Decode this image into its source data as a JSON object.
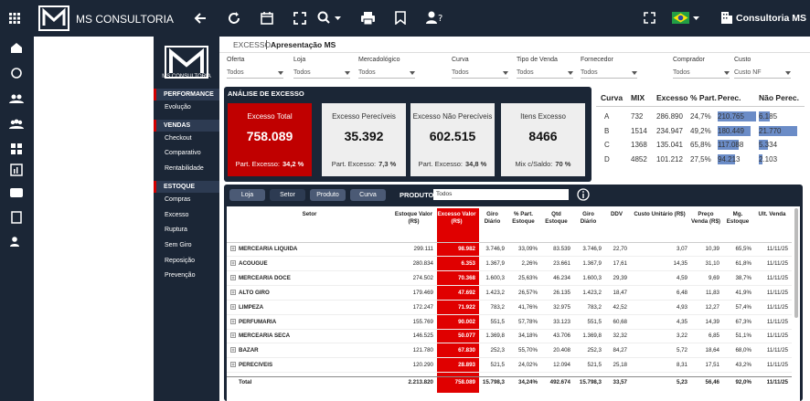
{
  "header": {
    "brand": "MS CONSULTORIA",
    "user": "Consultoria MS"
  },
  "sidebar": {
    "logo_text": "MS CONSULTORIA",
    "sections": [
      {
        "title": "PERFORMANCE",
        "items": [
          "Evolução"
        ]
      },
      {
        "title": "VENDAS",
        "items": [
          "Checkout",
          "Comparativo",
          "Rentabilidade"
        ]
      },
      {
        "title": "ESTOQUE",
        "items": [
          "Compras",
          "Excesso",
          "Ruptura",
          "Sem Giro",
          "Reposição",
          "Prevenção"
        ]
      }
    ]
  },
  "breadcrumb": {
    "section": "EXCESSO",
    "page": "Apresentação MS"
  },
  "filters": [
    {
      "label": "Oferta",
      "value": "Todos"
    },
    {
      "label": "Loja",
      "value": "Todos"
    },
    {
      "label": "Mercadológico",
      "value": "Todos"
    },
    {
      "label": "Curva",
      "value": "Todos"
    },
    {
      "label": "Tipo de Venda",
      "value": "Todos"
    },
    {
      "label": "Fornecedor",
      "value": "Todos"
    },
    {
      "label": "Comprador",
      "value": "Todos"
    },
    {
      "label": "Custo",
      "value": "Custo NF"
    }
  ],
  "kpi": {
    "title": "ANÁLISE DE EXCESSO",
    "cards": [
      {
        "label": "Excesso Total",
        "value": "758.089",
        "foot_label": "Part. Excesso:",
        "foot_value": "34,2 %"
      },
      {
        "label": "Excesso Perecíveis",
        "value": "35.392",
        "foot_label": "Part. Excesso:",
        "foot_value": "7,3 %"
      },
      {
        "label": "Excesso Não Perecíveis",
        "value": "602.515",
        "foot_label": "Part. Excesso:",
        "foot_value": "34,8 %"
      },
      {
        "label": "Itens Excesso",
        "value": "8466",
        "foot_label": "Mix c/Saldo:",
        "foot_value": "70 %"
      }
    ]
  },
  "curve_table": {
    "columns": [
      "Curva",
      "MIX",
      "Excesso",
      "% Part.",
      "Perec.",
      "Não Perec."
    ],
    "rows": [
      [
        "A",
        "732",
        "286.890",
        "24,7%",
        "210.765",
        "6.185"
      ],
      [
        "B",
        "1514",
        "234.947",
        "49,2%",
        "180.449",
        "21.770"
      ],
      [
        "C",
        "1368",
        "135.041",
        "65,8%",
        "117.088",
        "5.334"
      ],
      [
        "D",
        "4852",
        "101.212",
        "27,5%",
        "94.213",
        "2.103"
      ]
    ]
  },
  "product_table": {
    "tabs": [
      "Loja",
      "Setor",
      "Produto",
      "Curva"
    ],
    "active_tab": "Setor",
    "filter_label": "PRODUTO",
    "filter_value": "Todos",
    "columns": [
      "Setor",
      "Estoque Valor (R$)",
      "Excesso Valor (R$)",
      "Giro Diário",
      "% Part. Estoque",
      "Qtd Estoque",
      "Giro Diário",
      "DDV",
      "Custo Unitário (R$)",
      "Preço Venda (R$)",
      "Mg. Estoque",
      "Ult. Venda"
    ],
    "rows": [
      [
        "MERCEARIA LIQUIDA",
        "299.111",
        "98.982",
        "3.746,9",
        "33,09%",
        "83.539",
        "3.746,9",
        "22,70",
        "3,07",
        "10,39",
        "65,5%",
        "11/11/25"
      ],
      [
        "ACOUGUE",
        "280.834",
        "6.353",
        "1.367,9",
        "2,26%",
        "23.661",
        "1.367,9",
        "17,61",
        "14,35",
        "31,10",
        "61,8%",
        "11/11/25"
      ],
      [
        "MERCEARIA DOCE",
        "274.502",
        "70.368",
        "1.600,3",
        "25,63%",
        "46.234",
        "1.600,3",
        "29,39",
        "4,59",
        "9,69",
        "38,7%",
        "11/11/25"
      ],
      [
        "ALTO GIRO",
        "179.469",
        "47.692",
        "1.423,2",
        "26,57%",
        "26.135",
        "1.423,2",
        "18,47",
        "6,48",
        "11,83",
        "41,9%",
        "11/11/25"
      ],
      [
        "LIMPEZA",
        "172.247",
        "71.922",
        "783,2",
        "41,76%",
        "32.975",
        "783,2",
        "42,52",
        "4,93",
        "12,27",
        "57,4%",
        "11/11/25"
      ],
      [
        "PERFUMARIA",
        "155.769",
        "90.002",
        "551,5",
        "57,78%",
        "33.123",
        "551,5",
        "60,68",
        "4,35",
        "14,39",
        "67,3%",
        "11/11/25"
      ],
      [
        "MERCEARIA SECA",
        "146.525",
        "50.077",
        "1.369,8",
        "34,18%",
        "43.706",
        "1.369,8",
        "32,32",
        "3,22",
        "6,85",
        "51,1%",
        "11/11/25"
      ],
      [
        "BAZAR",
        "121.780",
        "67.830",
        "252,3",
        "55,70%",
        "20.408",
        "252,3",
        "84,27",
        "5,72",
        "18,64",
        "68,0%",
        "11/11/25"
      ],
      [
        "PERECIVEIS",
        "120.290",
        "28.893",
        "521,5",
        "24,02%",
        "12.094",
        "521,5",
        "25,18",
        "8,31",
        "17,51",
        "43,2%",
        "11/11/25"
      ]
    ],
    "total": [
      "Total",
      "2.213.820",
      "758.089",
      "15.798,3",
      "34,24%",
      "492.674",
      "15.798,3",
      "33,57",
      "5,23",
      "56,46",
      "92,0%",
      "11/11/25"
    ]
  }
}
